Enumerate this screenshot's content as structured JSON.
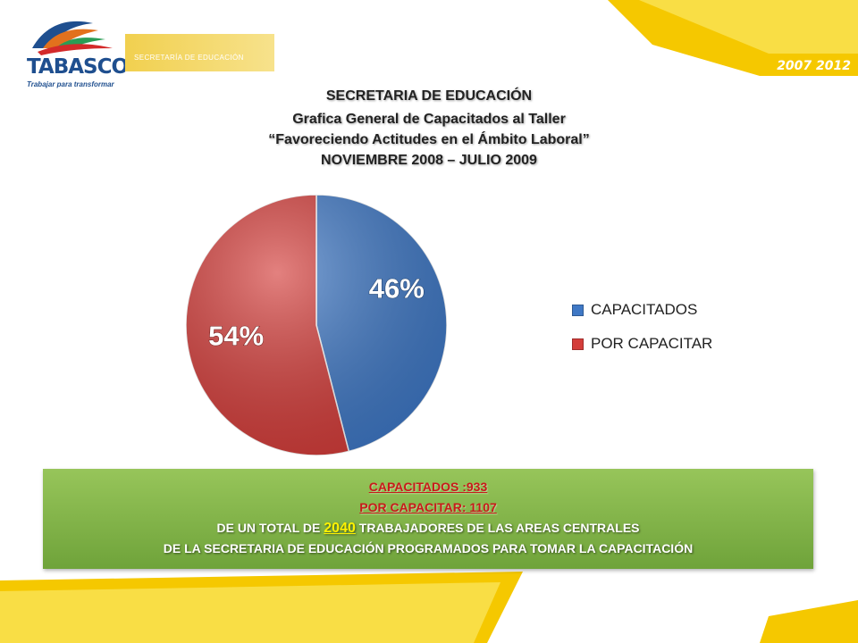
{
  "header": {
    "logo_text": "TABASCO",
    "logo_tagline": "Trabajar para transformar",
    "department_label": "SECRETARÍA DE EDUCACIÓN",
    "years": "2007 2012"
  },
  "chart_data": {
    "type": "pie",
    "title": "SECRETARIA DE EDUCACIÓN",
    "subtitle_lines": [
      "Grafica  General de Capacitados  al Taller",
      "“Favoreciendo Actitudes en el Ámbito Laboral”",
      "NOVIEMBRE 2008 – JULIO  2009"
    ],
    "categories": [
      "CAPACITADOS",
      "POR CAPACITAR"
    ],
    "values": [
      46,
      54
    ],
    "data_labels": [
      "46%",
      "54%"
    ],
    "colors": [
      "#3f78c5",
      "#d43d3a"
    ],
    "legend_position": "right"
  },
  "summary": {
    "capacitados_label": "CAPACITADOS :",
    "capacitados_value": "933",
    "por_capacitar_label": "POR CAPACITAR: ",
    "por_capacitar_value": "1107",
    "total_prefix": "DE UN TOTAL DE ",
    "total_value": "2040",
    "total_suffix": " TRABAJADORES DE LAS AREAS CENTRALES",
    "line4": "DE LA SECRETARIA DE EDUCACIÓN PROGRAMADOS PARA TOMAR LA CAPACITACIÓN"
  }
}
